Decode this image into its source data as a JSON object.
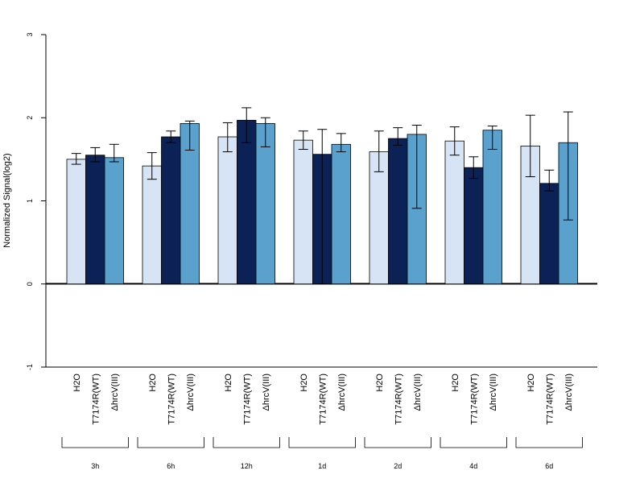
{
  "chart_data": {
    "type": "bar",
    "ylabel": "Normalized Signal(log2)",
    "ylim": [
      -1,
      3
    ],
    "yticks": [
      "-1",
      "0",
      "1",
      "2",
      "3"
    ],
    "grid": false,
    "groups": [
      "3h",
      "6h",
      "12h",
      "1d",
      "2d",
      "4d",
      "6d"
    ],
    "series_labels": [
      "H2O",
      "T7174R(WT)",
      "ΔhrcV(III)"
    ],
    "colors": [
      "#d6e4f5",
      "#0c2257",
      "#5ba1ce"
    ],
    "series": [
      {
        "values": [
          1.5,
          1.42,
          1.77,
          1.73,
          1.59,
          1.72,
          1.66
        ],
        "err_low": [
          1.44,
          1.26,
          1.59,
          1.62,
          1.35,
          1.55,
          1.29
        ],
        "err_high": [
          1.57,
          1.58,
          1.94,
          1.84,
          1.84,
          1.89,
          2.03
        ]
      },
      {
        "values": [
          1.55,
          1.77,
          1.97,
          1.56,
          1.75,
          1.4,
          1.21
        ],
        "err_low": [
          1.47,
          1.7,
          1.7,
          0.0,
          1.67,
          1.27,
          1.12
        ],
        "err_high": [
          1.64,
          1.84,
          2.12,
          1.86,
          1.88,
          1.53,
          1.37
        ]
      },
      {
        "values": [
          1.52,
          1.93,
          1.93,
          1.68,
          1.8,
          1.85,
          1.7
        ],
        "err_low": [
          1.47,
          1.61,
          1.65,
          1.59,
          0.91,
          1.62,
          0.77
        ],
        "err_high": [
          1.68,
          1.96,
          2.0,
          1.81,
          1.91,
          1.9,
          2.07
        ]
      }
    ]
  }
}
